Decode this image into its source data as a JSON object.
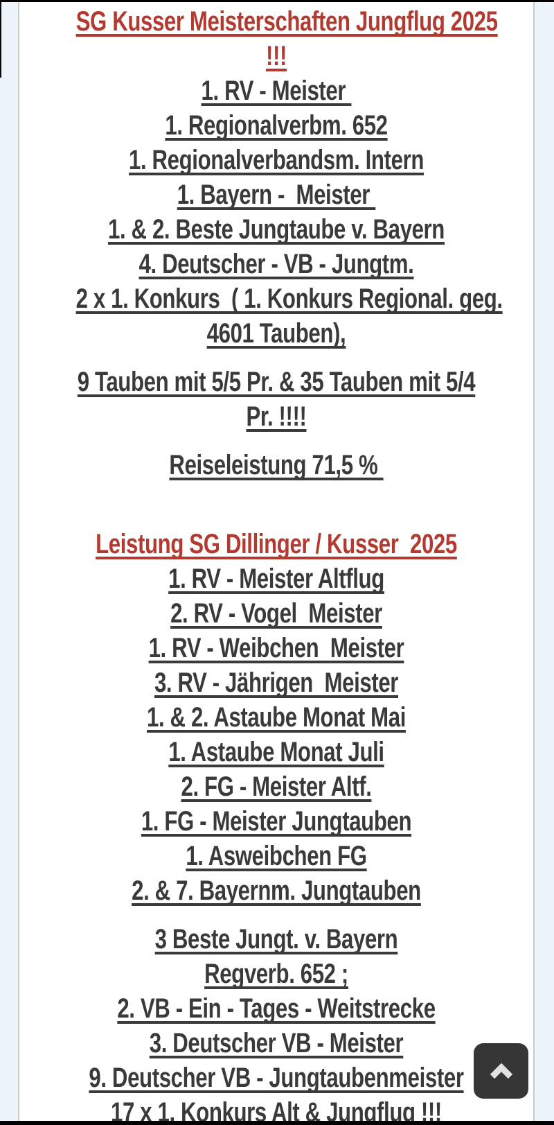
{
  "page": {
    "accent_red": "#b23a30",
    "text_dark": "#3a3a3a",
    "margin_background": "#ecf4fa",
    "content_background": "#ffffff",
    "button_background": "#363636"
  },
  "content": {
    "lines": [
      {
        "text": "SG Kusser Meisterschaften Jungflug 2025",
        "style": "red"
      },
      {
        "text": "!!!",
        "style": "red"
      },
      {
        "text": "1. RV - Meister ",
        "style": "dark"
      },
      {
        "text": "1. Regionalverbm. 652",
        "style": "dark"
      },
      {
        "text": "1. Regionalverbandsm. Intern",
        "style": "dark"
      },
      {
        "text": "1. Bayern -  Meister ",
        "style": "dark"
      },
      {
        "text": "1. & 2. Beste Jungtaube v. Bayern",
        "style": "dark"
      },
      {
        "text": "4. Deutscher - VB - Jungtm.",
        "style": "dark"
      },
      {
        "text": "2 x 1. Konkurs  ( 1. Konkurs Regional. geg.",
        "style": "dark"
      },
      {
        "text": "4601 Tauben),",
        "style": "dark"
      },
      {
        "text": "9 Tauben mit 5/5 Pr. & 35 Tauben mit 5/4",
        "style": "dark",
        "gap": "para"
      },
      {
        "text": "Pr. !!!!",
        "style": "dark"
      },
      {
        "text": "Reiseleistung 71,5 % ",
        "style": "dark",
        "gap": "para"
      },
      {
        "text": "Leistung SG Dillinger / Kusser  2025",
        "style": "red",
        "gap": "big"
      },
      {
        "text": "1. RV - Meister Altflug",
        "style": "dark"
      },
      {
        "text": "2. RV - Vogel  Meister",
        "style": "dark"
      },
      {
        "text": "1. RV - Weibchen  Meister",
        "style": "dark"
      },
      {
        "text": "3. RV - Jährigen  Meister",
        "style": "dark"
      },
      {
        "text": "1. & 2. Astaube Monat Mai",
        "style": "dark"
      },
      {
        "text": "1. Astaube Monat Juli",
        "style": "dark"
      },
      {
        "text": "2. FG - Meister Altf.",
        "style": "dark"
      },
      {
        "text": "1. FG - Meister Jungtauben",
        "style": "dark"
      },
      {
        "text": "1. Asweibchen FG",
        "style": "dark"
      },
      {
        "text": "2. & 7. Bayernm. Jungtauben",
        "style": "dark"
      },
      {
        "text": "3 Beste Jungt. v. Bayern",
        "style": "dark",
        "gap": "para"
      },
      {
        "text": "Regverb. 652 ;",
        "style": "dark"
      },
      {
        "text": "2. VB - Ein - Tages - Weitstrecke",
        "style": "dark"
      },
      {
        "text": "3. Deutscher VB - Meister",
        "style": "dark"
      },
      {
        "text": "9. Deutscher VB - Jungtaubenmeister",
        "style": "dark"
      },
      {
        "text": "17 x 1. Konkurs Alt & Jungflug !!!",
        "style": "dark"
      }
    ]
  },
  "scroll_top_button": {
    "icon": "chevron-up"
  }
}
